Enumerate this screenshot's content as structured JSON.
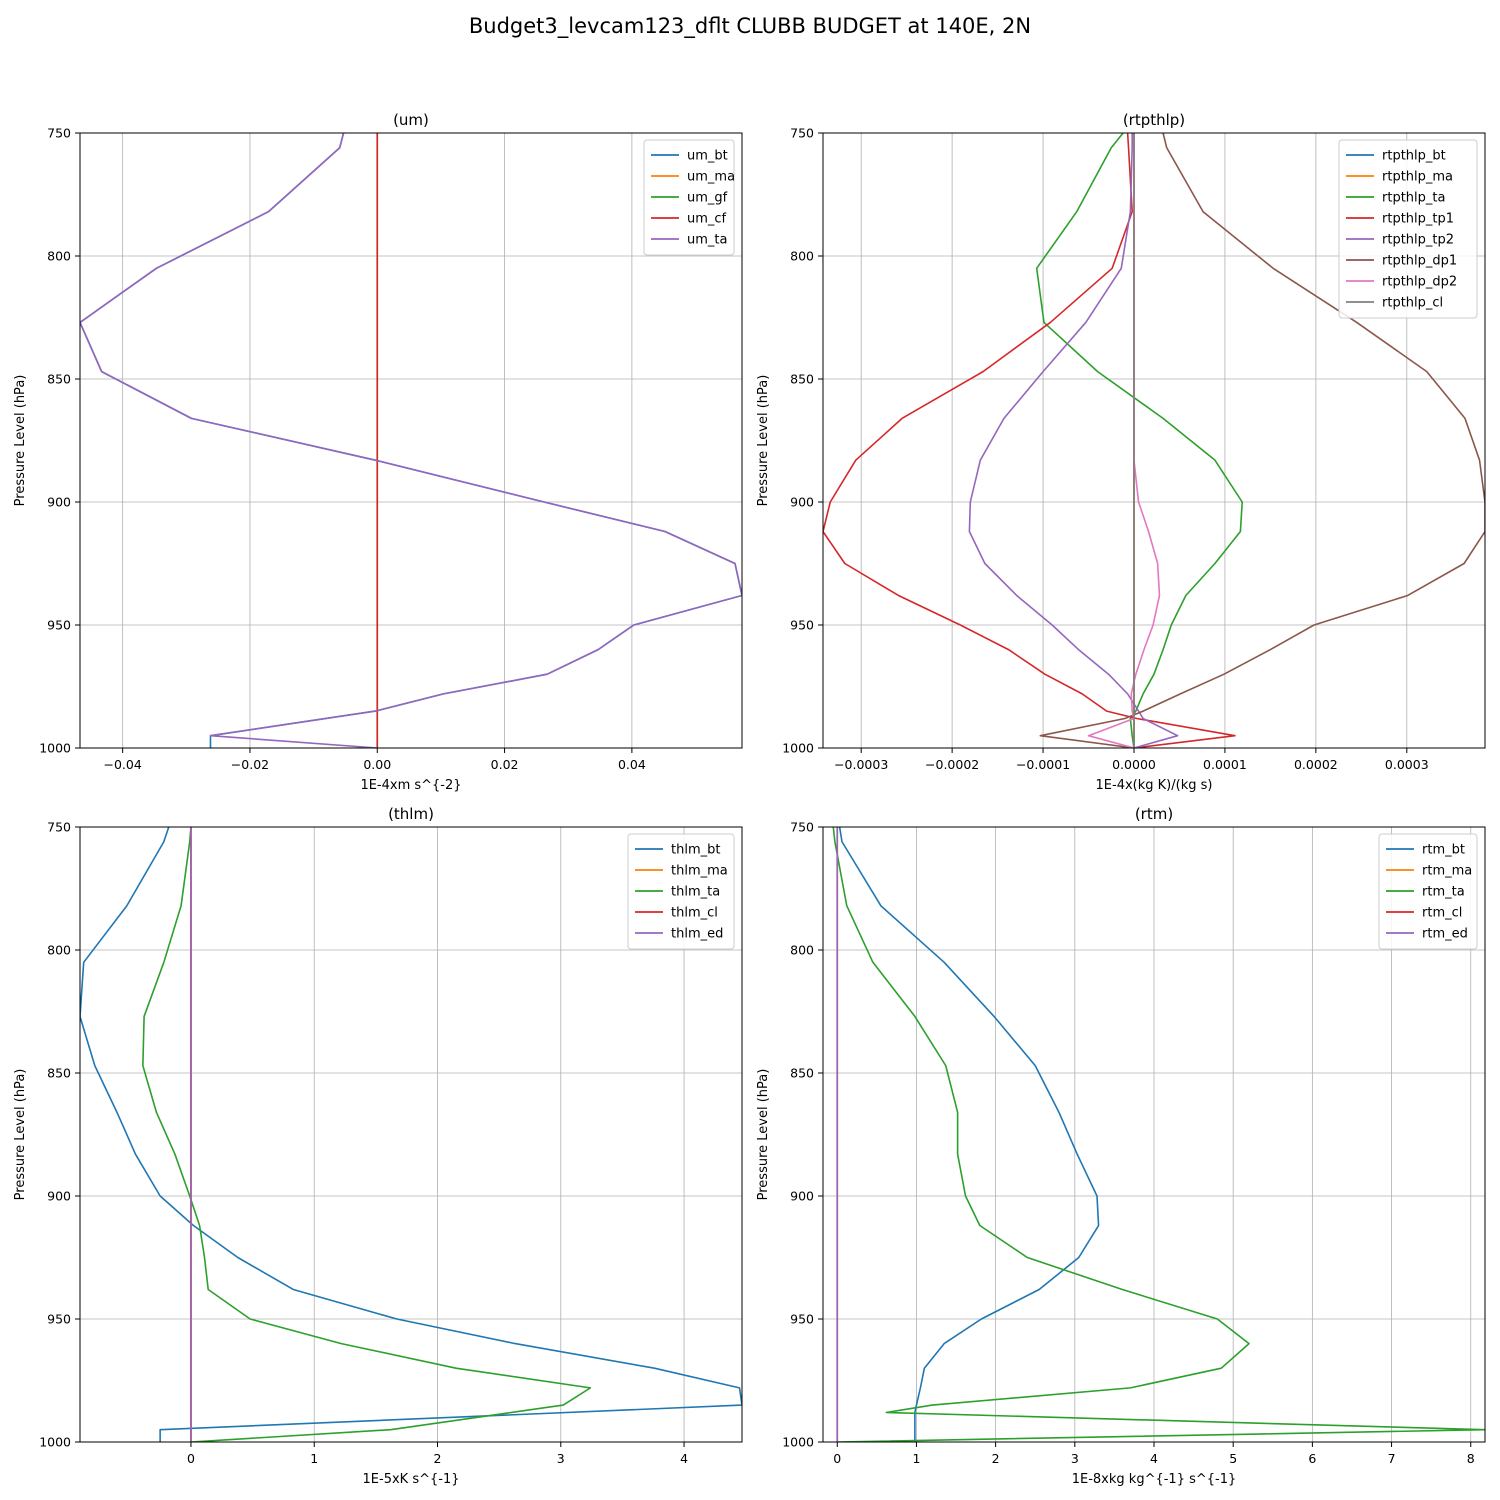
{
  "suptitle": "Budget3_levcam123_dflt CLUBB BUDGET at 140E, 2N",
  "chart_data": [
    {
      "type": "line",
      "title": "(um)",
      "xlabel": "1E-4xm s^{-2}",
      "ylabel": "Pressure Level (hPa)",
      "xlim": [
        -0.0467,
        0.0573
      ],
      "ylim": [
        750,
        1000
      ],
      "y_inverted": true,
      "grid": true,
      "legend": "top-right",
      "xticks": [
        -0.04,
        -0.02,
        0.0,
        0.02,
        0.04
      ],
      "xtick_labels": [
        "−0.04",
        "−0.02",
        "0.00",
        "0.02",
        "0.04"
      ],
      "yticks": [
        750,
        800,
        850,
        900,
        950,
        1000
      ],
      "ytick_labels": [
        "750",
        "800",
        "850",
        "900",
        "950",
        "1000"
      ],
      "y": [
        750,
        756,
        782,
        805,
        827,
        847,
        866,
        883,
        900,
        912,
        925,
        938,
        950,
        960,
        970,
        978,
        985,
        995,
        1000
      ],
      "series": [
        {
          "name": "um_bt",
          "color": "#1f77b4",
          "values": [
            -0.0053,
            -0.0059,
            -0.0171,
            -0.0347,
            -0.0467,
            -0.0433,
            -0.0292,
            -0.0003,
            0.0262,
            0.0452,
            0.0562,
            0.0573,
            0.0403,
            0.0347,
            0.0267,
            0.0104,
            -0.0003,
            -0.0262,
            -0.0262
          ]
        },
        {
          "name": "um_ma",
          "color": "#ff7f0e",
          "values": [
            0,
            0,
            0,
            0,
            0,
            0,
            0,
            0,
            0,
            0,
            0,
            0,
            0,
            0,
            0,
            0,
            0,
            0,
            0
          ]
        },
        {
          "name": "um_gf",
          "color": "#2ca02c",
          "values": [
            0,
            0,
            0,
            0,
            0,
            0,
            0,
            0,
            0,
            0,
            0,
            0,
            0,
            0,
            0,
            0,
            0,
            0,
            0
          ]
        },
        {
          "name": "um_cf",
          "color": "#d62728",
          "values": [
            0,
            0,
            0,
            0,
            0,
            0,
            0,
            0,
            0,
            0,
            0,
            0,
            0,
            0,
            0,
            0,
            0,
            0,
            0
          ]
        },
        {
          "name": "um_ta",
          "color": "#9467bd",
          "values": [
            -0.0053,
            -0.0059,
            -0.0171,
            -0.0347,
            -0.0467,
            -0.0433,
            -0.0292,
            -0.0003,
            0.0262,
            0.0452,
            0.0562,
            0.0573,
            0.0403,
            0.0347,
            0.0267,
            0.0104,
            -0.0003,
            -0.0262,
            0.0
          ]
        }
      ]
    },
    {
      "type": "line",
      "title": "(rtpthlp)",
      "xlabel": "1E-4x(kg K)/(kg s)",
      "ylabel": "Pressure Level (hPa)",
      "xlim": [
        -0.000342,
        0.000386
      ],
      "ylim": [
        750,
        1000
      ],
      "y_inverted": true,
      "grid": true,
      "legend": "top-right",
      "xticks": [
        -0.0003,
        -0.0002,
        -0.0001,
        0.0,
        0.0001,
        0.0002,
        0.0003
      ],
      "xtick_labels": [
        "−0.0003",
        "−0.0002",
        "−0.0001",
        "0.0000",
        "0.0001",
        "0.0002",
        "0.0003"
      ],
      "yticks": [
        750,
        800,
        850,
        900,
        950,
        1000
      ],
      "ytick_labels": [
        "750",
        "800",
        "850",
        "900",
        "950",
        "1000"
      ],
      "y": [
        750,
        756,
        782,
        805,
        827,
        847,
        866,
        883,
        900,
        912,
        925,
        938,
        950,
        960,
        970,
        978,
        985,
        988,
        995,
        1000
      ],
      "series": [
        {
          "name": "rtpthlp_bt",
          "color": "#1f77b4",
          "values": [
            0,
            0,
            0,
            0,
            0,
            0,
            0,
            0,
            0,
            0,
            0,
            0,
            0,
            0,
            0,
            0,
            0,
            0,
            0,
            0
          ]
        },
        {
          "name": "rtpthlp_ma",
          "color": "#ff7f0e",
          "values": [
            0,
            0,
            0,
            0,
            0,
            0,
            0,
            0,
            0,
            0,
            0,
            0,
            0,
            0,
            0,
            0,
            0,
            0,
            0,
            0
          ]
        },
        {
          "name": "rtpthlp_ta",
          "color": "#2ca02c",
          "values": [
            -1.2e-05,
            -2.5e-05,
            -6.3e-05,
            -0.000107,
            -9.9e-05,
            -4e-05,
            3.2e-05,
            8.9e-05,
            0.000119,
            0.000117,
            8.9e-05,
            5.7e-05,
            4.1e-05,
            3.2e-05,
            2.2e-05,
            1e-05,
            2e-06,
            -4e-06,
            -2e-06,
            0.0
          ]
        },
        {
          "name": "rtpthlp_tp1",
          "color": "#d62728",
          "values": [
            -7e-06,
            -6e-06,
            -2e-06,
            -2.4e-05,
            -9.2e-05,
            -0.000166,
            -0.000255,
            -0.000306,
            -0.000334,
            -0.000342,
            -0.000318,
            -0.000259,
            -0.000191,
            -0.000138,
            -9.8e-05,
            -5.7e-05,
            -3e-05,
            3e-06,
            0.000111,
            0.0
          ]
        },
        {
          "name": "rtpthlp_tp2",
          "color": "#9467bd",
          "values": [
            -2e-06,
            -2e-06,
            -4e-06,
            -1.4e-05,
            -5.3e-05,
            -0.0001,
            -0.000143,
            -0.000169,
            -0.00018,
            -0.000181,
            -0.000164,
            -0.000129,
            -9e-05,
            -6.1e-05,
            -2.8e-05,
            -7e-06,
            5e-06,
            1e-05,
            4.8e-05,
            0.0
          ]
        },
        {
          "name": "rtpthlp_dp1",
          "color": "#8c564b",
          "values": [
            3.2e-05,
            3.6e-05,
            7.6e-05,
            0.000153,
            0.000245,
            0.000322,
            0.000364,
            0.00038,
            0.000386,
            0.000386,
            0.000363,
            0.000301,
            0.000198,
            0.00015,
            9.9e-05,
            5.1e-05,
            1e-05,
            -1e-05,
            -0.000103,
            0.0
          ]
        },
        {
          "name": "rtpthlp_dp2",
          "color": "#e377c2",
          "values": [
            0,
            0,
            0,
            0,
            0,
            0,
            0,
            0,
            5e-06,
            1.6e-05,
            2.6e-05,
            2.8e-05,
            2.1e-05,
            1.1e-05,
            2e-06,
            -3e-06,
            -2e-06,
            0.0,
            -5e-05,
            0.0
          ]
        },
        {
          "name": "rtpthlp_cl",
          "color": "#7f7f7f",
          "values": [
            0,
            0,
            0,
            0,
            0,
            0,
            0,
            0,
            0,
            0,
            0,
            0,
            0,
            0,
            0,
            0,
            0,
            0,
            0,
            0
          ]
        }
      ]
    },
    {
      "type": "line",
      "title": "(thlm)",
      "xlabel": "1E-5xK s^{-1}",
      "ylabel": "Pressure Level (hPa)",
      "xlim": [
        -0.9,
        4.47
      ],
      "ylim": [
        750,
        1000
      ],
      "y_inverted": true,
      "grid": true,
      "legend": "top-right",
      "xticks": [
        0,
        1,
        2,
        3,
        4
      ],
      "xtick_labels": [
        "0",
        "1",
        "2",
        "3",
        "4"
      ],
      "yticks": [
        750,
        800,
        850,
        900,
        950,
        1000
      ],
      "ytick_labels": [
        "750",
        "800",
        "850",
        "900",
        "950",
        "1000"
      ],
      "y": [
        750,
        756,
        782,
        805,
        827,
        847,
        866,
        883,
        900,
        912,
        925,
        938,
        950,
        960,
        970,
        978,
        985,
        995,
        1000
      ],
      "series": [
        {
          "name": "thlm_bt",
          "color": "#1f77b4",
          "values": [
            -0.18,
            -0.22,
            -0.52,
            -0.87,
            -0.9,
            -0.78,
            -0.6,
            -0.45,
            -0.25,
            0.02,
            0.38,
            0.83,
            1.67,
            2.63,
            3.76,
            4.45,
            4.47,
            -0.25,
            -0.25
          ]
        },
        {
          "name": "thlm_ma",
          "color": "#ff7f0e",
          "values": [
            0,
            0,
            0,
            0,
            0,
            0,
            0,
            0,
            0,
            0,
            0,
            0,
            0,
            0,
            0,
            0,
            0,
            0,
            0
          ]
        },
        {
          "name": "thlm_ta",
          "color": "#2ca02c",
          "values": [
            0.0,
            -0.01,
            -0.08,
            -0.22,
            -0.38,
            -0.39,
            -0.28,
            -0.13,
            -0.01,
            0.07,
            0.11,
            0.14,
            0.48,
            1.22,
            2.15,
            3.24,
            3.02,
            1.62,
            0.0
          ]
        },
        {
          "name": "thlm_cl",
          "color": "#d62728",
          "values": [
            0,
            0,
            0,
            0,
            0,
            0,
            0,
            0,
            0,
            0,
            0,
            0,
            0,
            0,
            0,
            0,
            0,
            0,
            0
          ]
        },
        {
          "name": "thlm_ed",
          "color": "#9467bd",
          "values": [
            0,
            0,
            0,
            0,
            0,
            0,
            0,
            0,
            0,
            0,
            0,
            0,
            0,
            0,
            0,
            0,
            0,
            0,
            0
          ]
        }
      ]
    },
    {
      "type": "line",
      "title": "(rtm)",
      "xlabel": "1E-8xkg kg^{-1} s^{-1}",
      "ylabel": "Pressure Level (hPa)",
      "xlim": [
        -0.18,
        8.18
      ],
      "ylim": [
        750,
        1000
      ],
      "y_inverted": true,
      "grid": true,
      "legend": "top-right",
      "xticks": [
        0,
        1,
        2,
        3,
        4,
        5,
        6,
        7,
        8
      ],
      "xtick_labels": [
        "0",
        "1",
        "2",
        "3",
        "4",
        "5",
        "6",
        "7",
        "8"
      ],
      "yticks": [
        750,
        800,
        850,
        900,
        950,
        1000
      ],
      "ytick_labels": [
        "750",
        "800",
        "850",
        "900",
        "950",
        "1000"
      ],
      "y": [
        750,
        756,
        782,
        805,
        827,
        847,
        866,
        883,
        900,
        912,
        925,
        938,
        950,
        960,
        970,
        978,
        985,
        988,
        995,
        1000
      ],
      "series": [
        {
          "name": "rtm_bt",
          "color": "#1f77b4",
          "values": [
            0.03,
            0.06,
            0.55,
            1.35,
            1.98,
            2.5,
            2.8,
            3.03,
            3.28,
            3.3,
            3.05,
            2.55,
            1.82,
            1.35,
            1.1,
            1.05,
            1.0,
            0.98,
            0.98,
            0.98
          ]
        },
        {
          "name": "rtm_ma",
          "color": "#ff7f0e",
          "values": [
            0,
            0,
            0,
            0,
            0,
            0,
            0,
            0,
            0,
            0,
            0,
            0,
            0,
            0,
            0,
            0,
            0,
            0,
            0,
            0
          ]
        },
        {
          "name": "rtm_ta",
          "color": "#2ca02c",
          "values": [
            -0.05,
            -0.03,
            0.12,
            0.45,
            0.98,
            1.37,
            1.52,
            1.52,
            1.62,
            1.8,
            2.4,
            3.6,
            4.8,
            5.2,
            4.85,
            3.7,
            1.2,
            0.62,
            8.18,
            0.0
          ]
        },
        {
          "name": "rtm_cl",
          "color": "#d62728",
          "values": [
            0,
            0,
            0,
            0,
            0,
            0,
            0,
            0,
            0,
            0,
            0,
            0,
            0,
            0,
            0,
            0,
            0,
            0,
            0,
            0
          ]
        },
        {
          "name": "rtm_ed",
          "color": "#9467bd",
          "values": [
            0,
            0,
            0,
            0,
            0,
            0,
            0,
            0,
            0,
            0,
            0,
            0,
            0,
            0,
            0,
            0,
            0,
            0,
            0,
            0
          ]
        }
      ]
    }
  ]
}
